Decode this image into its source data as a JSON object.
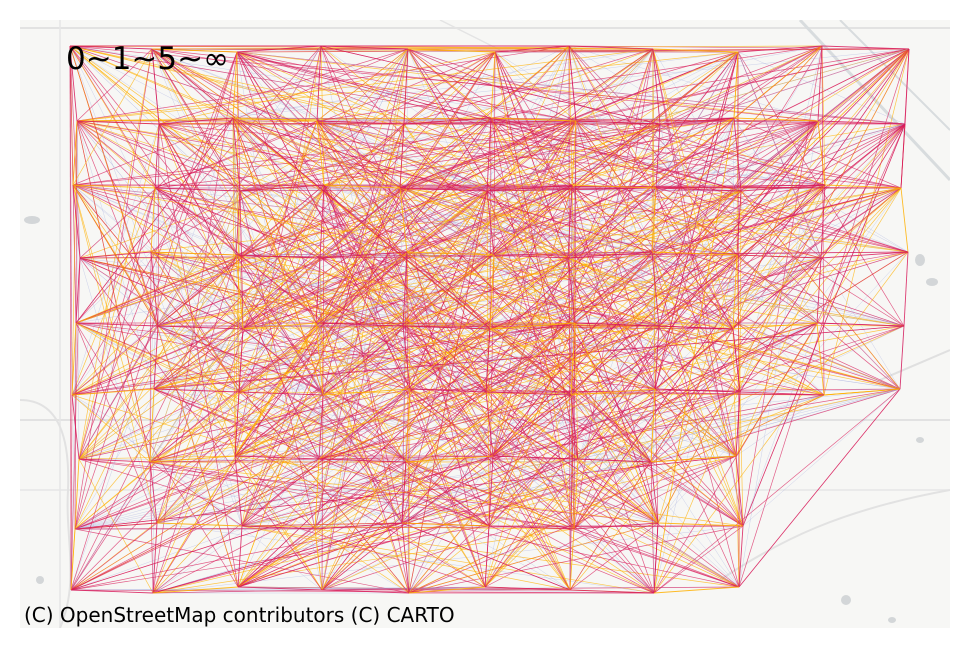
{
  "map": {
    "legend_title": "0~1~5~∞",
    "attribution": "(C) OpenStreetMap contributors (C) CARTO",
    "colors": {
      "background": "#f7f7f5",
      "road": "#e4e4e4",
      "water": "#cfd3d6",
      "flow_low": "#aab0e0",
      "flow_mid": "#d81b5a",
      "flow_high": "#ffb000"
    }
  }
}
